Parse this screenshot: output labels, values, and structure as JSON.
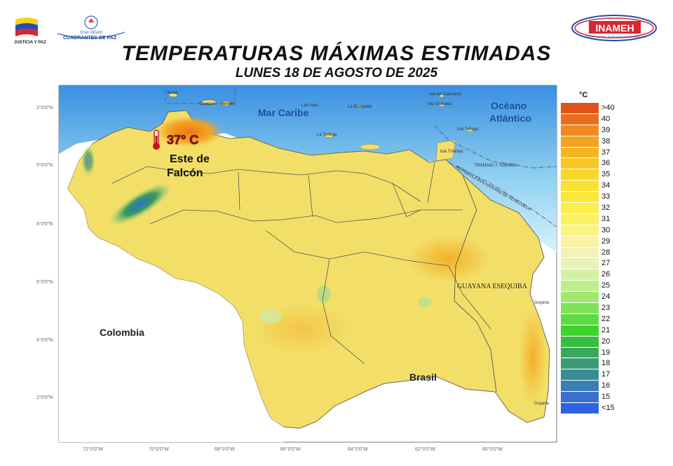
{
  "header": {
    "title": "TEMPERATURAS MÁXIMAS ESTIMADAS",
    "subtitle": "LUNES 18 DE AGOSTO DE 2025",
    "left_logo_1_text": "JUSTICIA Y PAZ",
    "left_logo_2_line1": "Gran Misión",
    "left_logo_2_line2": "CUADRANTES DE PAZ",
    "right_logo_text": "INAMEH",
    "right_logo_subtext": "INSTITUTO NACIONAL DE METEOROLOGÍA E HIDROLOGÍA"
  },
  "map": {
    "sea_labels": {
      "caribbean": "Mar Caribe",
      "atlantic_1": "Océano",
      "atlantic_2": "Atlántico"
    },
    "country_labels": {
      "colombia": "Colombia",
      "brasil": "Brasil",
      "esequibo": "GUAYANA ESEQUIBA"
    },
    "island_labels": [
      "Aruba",
      "Curazao",
      "Bonaire",
      "Las Aves",
      "La Blanquilla",
      "La Tortuga",
      "Isla las Carriacou",
      "Isla Granada",
      "Isla Tobago",
      "Isla Trinidad",
      "Guyana",
      "Guyana"
    ],
    "boundary_labels": {
      "trinidad": "TRINIDAD Y TOBAGO",
      "venezuela": "REPÚBLICA BOLIVARIANA DE VENEZUELA"
    },
    "annotation": {
      "temp": "37° C",
      "place_1": "Este de",
      "place_2": "Falcón"
    },
    "lat_ticks": [
      "2°0'0\"N",
      "0°0'0\"N",
      "8°0'0\"N",
      "6°0'0\"N",
      "4°0'0\"N",
      "2°0'0\"N"
    ],
    "lon_ticks": [
      "72°0'0\"W",
      "70°0'0\"W",
      "68°0'0\"W",
      "66°0'0\"W",
      "64°0'0\"W",
      "62°0'0\"W",
      "60°0'0\"W"
    ]
  },
  "legend": {
    "unit": "°C",
    "entries": [
      {
        "label": ">40",
        "color": "#e0541a"
      },
      {
        "label": "40",
        "color": "#ea6e1c"
      },
      {
        "label": "39",
        "color": "#f08a1e"
      },
      {
        "label": "38",
        "color": "#f4a21f"
      },
      {
        "label": "37",
        "color": "#f7b520"
      },
      {
        "label": "36",
        "color": "#f9c723"
      },
      {
        "label": "35",
        "color": "#fad628"
      },
      {
        "label": "34",
        "color": "#fbe12f"
      },
      {
        "label": "33",
        "color": "#fbe83a"
      },
      {
        "label": "32",
        "color": "#fbed4c"
      },
      {
        "label": "31",
        "color": "#fbf165"
      },
      {
        "label": "30",
        "color": "#fbf383"
      },
      {
        "label": "29",
        "color": "#f9f3a2"
      },
      {
        "label": "28",
        "color": "#f3f2bd"
      },
      {
        "label": "27",
        "color": "#e9f2b9"
      },
      {
        "label": "26",
        "color": "#d4f1a3"
      },
      {
        "label": "25",
        "color": "#bdee8a"
      },
      {
        "label": "24",
        "color": "#a0e872"
      },
      {
        "label": "23",
        "color": "#7fe35a"
      },
      {
        "label": "22",
        "color": "#5cdb41"
      },
      {
        "label": "21",
        "color": "#3ed22d"
      },
      {
        "label": "20",
        "color": "#39bd3f"
      },
      {
        "label": "19",
        "color": "#3aa85a"
      },
      {
        "label": "18",
        "color": "#3a9a76"
      },
      {
        "label": "17",
        "color": "#3a8c94"
      },
      {
        "label": "16",
        "color": "#3a7fb1"
      },
      {
        "label": "15",
        "color": "#3a70cc"
      },
      {
        "label": "<15",
        "color": "#2f63e6"
      }
    ]
  }
}
